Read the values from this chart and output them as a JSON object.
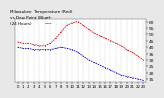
{
  "title": "Milwaukee  Temperature (Red) vs Dew Point (Blue) (24 Hours)",
  "title_fontsize": 3.2,
  "temp_color": "#dd0000",
  "dew_color": "#0000cc",
  "background_color": "#e8e8e8",
  "plot_bg_color": "#ffffff",
  "grid_color": "#888888",
  "ylim": [
    13,
    62
  ],
  "yticks": [
    15,
    20,
    25,
    30,
    35,
    40,
    45,
    50,
    55,
    60
  ],
  "ytick_fontsize": 3.2,
  "xtick_fontsize": 2.8,
  "x_hours": [
    0,
    1,
    2,
    3,
    4,
    5,
    6,
    7,
    8,
    9,
    10,
    11,
    12,
    13,
    14,
    15,
    16,
    17,
    18,
    19,
    20,
    21,
    22,
    23
  ],
  "x_labels": [
    "0",
    "1",
    "2",
    "3",
    "4",
    "5",
    "6",
    "7",
    "8",
    "9",
    "10",
    "11",
    "12",
    "13",
    "14",
    "15",
    "16",
    "17",
    "18",
    "19",
    "20",
    "21",
    "22",
    "23"
  ],
  "temp_values": [
    44,
    43,
    43,
    42,
    41,
    41,
    43,
    47,
    52,
    57,
    59,
    60,
    57,
    54,
    51,
    49,
    47,
    45,
    43,
    41,
    38,
    36,
    33,
    30
  ],
  "dew_values": [
    40,
    39,
    39,
    38,
    38,
    38,
    38,
    39,
    40,
    39,
    38,
    36,
    33,
    30,
    28,
    26,
    24,
    22,
    20,
    18,
    17,
    16,
    15,
    14
  ]
}
